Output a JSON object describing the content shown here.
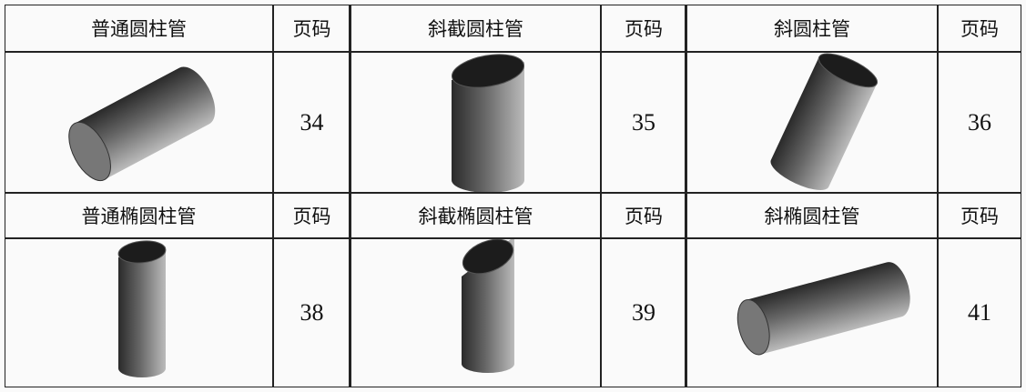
{
  "table": {
    "rows": [
      {
        "items": [
          {
            "name": "普通圆柱管",
            "page_label": "页码",
            "page": 34
          },
          {
            "name": "斜截圆柱管",
            "page_label": "页码",
            "page": 35
          },
          {
            "name": "斜圆柱管",
            "page_label": "页码",
            "page": 36
          }
        ]
      },
      {
        "items": [
          {
            "name": "普通椭圆柱管",
            "page_label": "页码",
            "page": 38
          },
          {
            "name": "斜截椭圆柱管",
            "page_label": "页码",
            "page": 39
          },
          {
            "name": "斜椭圆柱管",
            "page_label": "页码",
            "page": 41
          }
        ]
      }
    ]
  }
}
